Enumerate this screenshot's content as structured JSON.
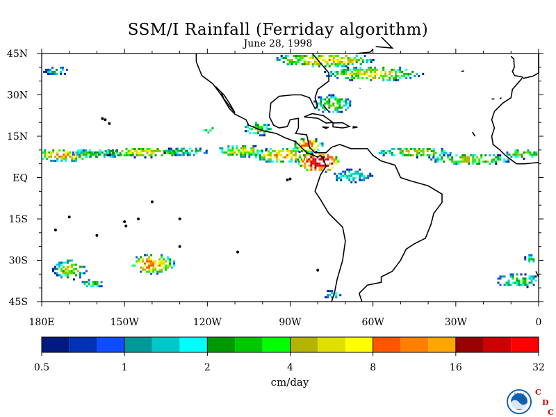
{
  "chart_data": {
    "type": "heatmap",
    "title": "SSM/I Rainfall (Ferriday algorithm)",
    "subtitle": "June 28, 1998",
    "x_ticks": [
      "180E",
      "150W",
      "120W",
      "90W",
      "60W",
      "30W",
      "0"
    ],
    "x_tick_values": [
      -180,
      -150,
      -120,
      -90,
      -60,
      -30,
      0
    ],
    "y_ticks": [
      "45N",
      "30N",
      "15N",
      "EQ",
      "15S",
      "30S",
      "45S"
    ],
    "y_tick_values": [
      45,
      30,
      15,
      0,
      -15,
      -30,
      -45
    ],
    "xlim": [
      -180,
      0
    ],
    "ylim": [
      -45,
      45
    ],
    "grid": false,
    "colorbar": {
      "unit": "cm/day",
      "labels": [
        "0.5",
        "1",
        "2",
        "4",
        "8",
        "16",
        "32"
      ],
      "label_values": [
        0.5,
        1,
        2,
        4,
        8,
        16,
        32
      ],
      "colors": [
        "#001a80",
        "#0033b3",
        "#0d4dff",
        "#009999",
        "#00c8c8",
        "#00ffff",
        "#009900",
        "#00c800",
        "#00ff00",
        "#b3b300",
        "#e0e000",
        "#ffff00",
        "#ff5500",
        "#ff8000",
        "#ffa500",
        "#990000",
        "#cc0000",
        "#ff0000"
      ]
    },
    "rain_regions": [
      {
        "lon": -172,
        "lat": 8.5,
        "w": 14,
        "h": 2.5,
        "peak": 8
      },
      {
        "lon": -160,
        "lat": 9,
        "w": 12,
        "h": 2,
        "peak": 3
      },
      {
        "lon": -143,
        "lat": 9.5,
        "w": 18,
        "h": 2,
        "peak": 6
      },
      {
        "lon": -128,
        "lat": 9.8,
        "w": 10,
        "h": 1.8,
        "peak": 3
      },
      {
        "lon": -108,
        "lat": 10,
        "w": 10,
        "h": 2.5,
        "peak": 6
      },
      {
        "lon": -93,
        "lat": 8.5,
        "w": 12,
        "h": 3,
        "peak": 8
      },
      {
        "lon": -80,
        "lat": 6,
        "w": 8,
        "h": 4,
        "peak": 28
      },
      {
        "lon": -84,
        "lat": 12,
        "w": 6,
        "h": 3,
        "peak": 10
      },
      {
        "lon": -45,
        "lat": 9.5,
        "w": 16,
        "h": 2,
        "peak": 5
      },
      {
        "lon": -25,
        "lat": 7,
        "w": 18,
        "h": 2.2,
        "peak": 5
      },
      {
        "lon": -6,
        "lat": 9,
        "w": 8,
        "h": 2,
        "peak": 4
      },
      {
        "lon": -140,
        "lat": -31,
        "w": 9,
        "h": 4,
        "peak": 9
      },
      {
        "lon": -170,
        "lat": -33,
        "w": 7,
        "h": 4,
        "peak": 5
      },
      {
        "lon": -162,
        "lat": -38,
        "w": 5,
        "h": 2,
        "peak": 3
      },
      {
        "lon": -78,
        "lat": 43,
        "w": 20,
        "h": 3,
        "peak": 7
      },
      {
        "lon": -60,
        "lat": 38,
        "w": 20,
        "h": 3,
        "peak": 6
      },
      {
        "lon": -75,
        "lat": 27,
        "w": 8,
        "h": 4,
        "peak": 4
      },
      {
        "lon": -102,
        "lat": 18,
        "w": 6,
        "h": 3,
        "peak": 4
      },
      {
        "lon": -120,
        "lat": 17.5,
        "w": 3,
        "h": 1.5,
        "peak": 3
      },
      {
        "lon": -175,
        "lat": 39,
        "w": 6,
        "h": 2,
        "peak": 2
      },
      {
        "lon": -8,
        "lat": -37,
        "w": 10,
        "h": 3,
        "peak": 3
      },
      {
        "lon": -3,
        "lat": -29,
        "w": 3,
        "h": 2,
        "peak": 3
      },
      {
        "lon": -75,
        "lat": -42,
        "w": 4,
        "h": 2,
        "peak": 2
      },
      {
        "lon": -68,
        "lat": 1,
        "w": 10,
        "h": 3,
        "peak": 2
      }
    ]
  },
  "logo": {
    "emblem_text": "NOAA",
    "letters": [
      "C",
      "D",
      "C"
    ],
    "letter_color": "#cc0000",
    "emblem_color": "#1060b0"
  }
}
